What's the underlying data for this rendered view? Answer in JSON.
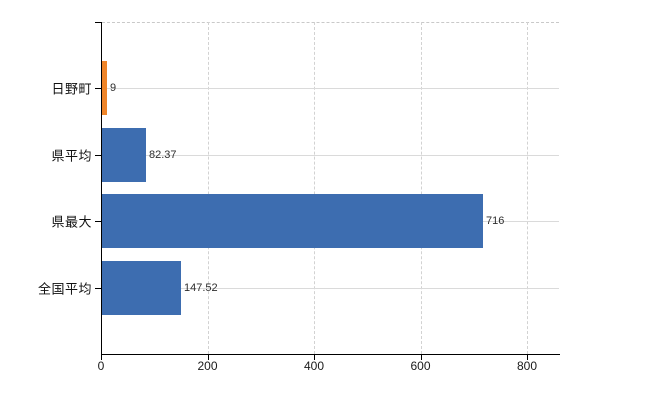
{
  "chart_data": {
    "type": "bar",
    "orientation": "horizontal",
    "title": "",
    "categories": [
      "日野町",
      "県平均",
      "県最大",
      "全国平均"
    ],
    "values": [
      9,
      82.37,
      716,
      147.52
    ],
    "value_labels": [
      "9",
      "82.37",
      "716",
      "147.52"
    ],
    "bar_colors": [
      "#ef8529",
      "#3d6db0",
      "#3d6db0",
      "#3d6db0"
    ],
    "x_tick_values": [
      0,
      200,
      400,
      600,
      800
    ],
    "x_tick_labels": [
      "0",
      "200",
      "400",
      "600",
      "800"
    ],
    "xlim": [
      0,
      860
    ],
    "grid": true,
    "legend_position": "none",
    "colors": {
      "background": "#ffffff",
      "axis": "#000000",
      "gridline": "#d9d9d9",
      "bar_highlight": "#ef8529",
      "bar_default": "#3d6db0",
      "text": "#1a1a1a"
    }
  }
}
